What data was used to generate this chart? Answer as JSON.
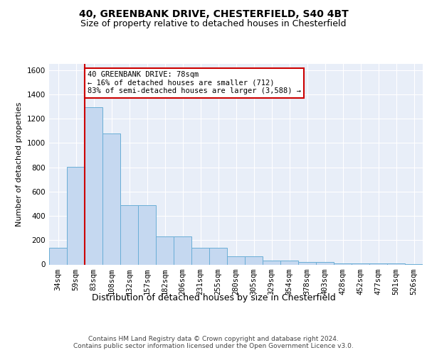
{
  "title1": "40, GREENBANK DRIVE, CHESTERFIELD, S40 4BT",
  "title2": "Size of property relative to detached houses in Chesterfield",
  "xlabel": "Distribution of detached houses by size in Chesterfield",
  "ylabel": "Number of detached properties",
  "footer1": "Contains HM Land Registry data © Crown copyright and database right 2024.",
  "footer2": "Contains public sector information licensed under the Open Government Licence v3.0.",
  "categories": [
    "34sqm",
    "59sqm",
    "83sqm",
    "108sqm",
    "132sqm",
    "157sqm",
    "182sqm",
    "206sqm",
    "231sqm",
    "255sqm",
    "280sqm",
    "305sqm",
    "329sqm",
    "354sqm",
    "378sqm",
    "403sqm",
    "428sqm",
    "452sqm",
    "477sqm",
    "501sqm",
    "526sqm"
  ],
  "values": [
    140,
    805,
    1295,
    1075,
    490,
    490,
    230,
    230,
    135,
    135,
    65,
    65,
    35,
    35,
    20,
    20,
    10,
    10,
    10,
    10,
    5
  ],
  "bar_color": "#c5d8f0",
  "bar_edge_color": "#6aaed6",
  "annotation_text": "40 GREENBANK DRIVE: 78sqm\n← 16% of detached houses are smaller (712)\n83% of semi-detached houses are larger (3,588) →",
  "annotation_box_color": "#ffffff",
  "annotation_border_color": "#cc0000",
  "ylim": [
    0,
    1650
  ],
  "background_color": "#e8eef8",
  "grid_color": "#ffffff",
  "title_fontsize": 10,
  "subtitle_fontsize": 9,
  "tick_fontsize": 7.5,
  "ylabel_fontsize": 8,
  "xlabel_fontsize": 9,
  "vline_color": "#cc0000",
  "vline_x": 1.5
}
